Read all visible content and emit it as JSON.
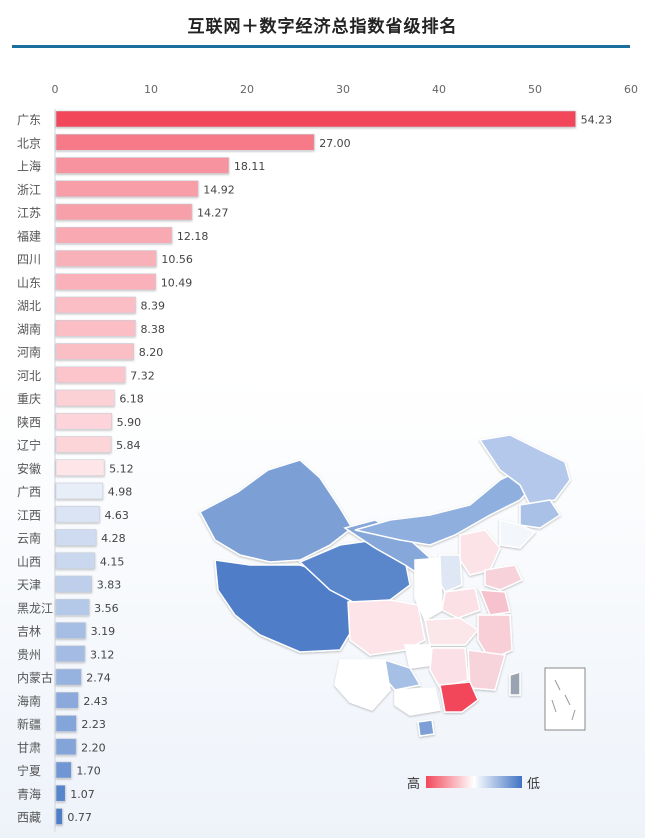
{
  "title": "互联网＋数字经济总指数省级排名",
  "legend": {
    "high_label": "高",
    "low_label": "低"
  },
  "colors": {
    "accent": "#1a6f9c",
    "high": "#f2475a",
    "low": "#3f73c4"
  },
  "chart_data": {
    "type": "bar",
    "orientation": "horizontal",
    "title": "互联网＋数字经济总指数省级排名",
    "xlim": [
      0,
      60
    ],
    "xticks": [
      0,
      10,
      20,
      30,
      40,
      50,
      60
    ],
    "grid": false,
    "categories": [
      "广东",
      "北京",
      "上海",
      "浙江",
      "江苏",
      "福建",
      "四川",
      "山东",
      "湖北",
      "湖南",
      "河南",
      "河北",
      "重庆",
      "陕西",
      "辽宁",
      "安徽",
      "广西",
      "江西",
      "云南",
      "山西",
      "天津",
      "黑龙江",
      "吉林",
      "贵州",
      "内蒙古",
      "海南",
      "新疆",
      "甘肃",
      "宁夏",
      "青海",
      "西藏"
    ],
    "values": [
      54.23,
      27.0,
      18.11,
      14.92,
      14.27,
      12.18,
      10.56,
      10.49,
      8.39,
      8.38,
      8.2,
      7.32,
      6.18,
      5.9,
      5.84,
      5.12,
      4.98,
      4.63,
      4.28,
      4.15,
      3.83,
      3.56,
      3.19,
      3.12,
      2.74,
      2.43,
      2.23,
      2.2,
      1.7,
      1.07,
      0.77
    ],
    "value_labels": [
      "54.23",
      "27.00",
      "18.11",
      "14.92",
      "14.27",
      "12.18",
      "10.56",
      "10.49",
      "8.39",
      "8.38",
      "8.20",
      "7.32",
      "6.18",
      "5.90",
      "5.84",
      "5.12",
      "4.98",
      "4.63",
      "4.28",
      "4.15",
      "3.83",
      "3.56",
      "3.19",
      "3.12",
      "2.74",
      "2.43",
      "2.23",
      "2.20",
      "1.70",
      "1.07",
      "0.77"
    ],
    "color_scale": {
      "high": "#f2475a",
      "mid": "#ffffff",
      "low": "#3f73c4"
    },
    "inset": "China province choropleth map colored by index (高 to 低)"
  }
}
